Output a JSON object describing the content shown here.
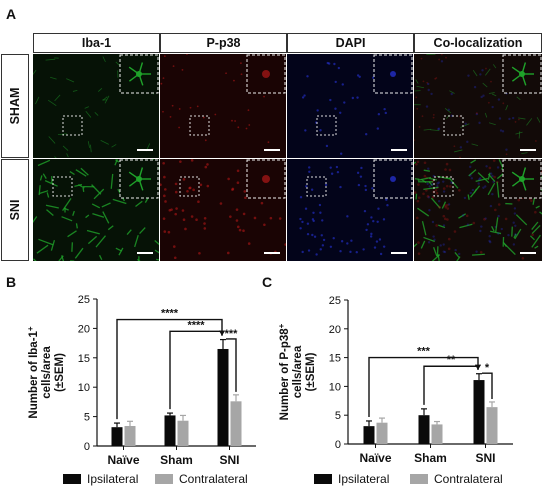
{
  "figure": {
    "panel_a_label": "A",
    "panel_b_label": "B",
    "panel_c_label": "C",
    "column_headers": [
      "Iba-1",
      "P-p38",
      "DAPI",
      "Co-localization"
    ],
    "row_headers": [
      "SHAM",
      "SNI"
    ],
    "colors": {
      "ipsilateral": "#0a0a0a",
      "contralateral": "#a6a6a6",
      "iba1": "#1fa22a",
      "pp38": "#b01818",
      "dapi": "#2430c8"
    }
  },
  "chart_data": [
    {
      "type": "bar",
      "panel": "B",
      "ylabel_lines": [
        "Number of Iba-1",
        "cells/area",
        "(±SEM)"
      ],
      "ylabel_sup": "+",
      "ylim": [
        0,
        25
      ],
      "yticks": [
        0,
        5,
        10,
        15,
        20,
        25
      ],
      "categories": [
        "Naïve",
        "Sham",
        "SNI"
      ],
      "series": [
        {
          "name": "Ipsilateral",
          "values": [
            3.2,
            5.2,
            16.5
          ],
          "errors": [
            0.7,
            0.4,
            1.6
          ]
        },
        {
          "name": "Contralateral",
          "values": [
            3.4,
            4.3,
            7.6
          ],
          "errors": [
            0.8,
            0.9,
            1.1
          ]
        }
      ],
      "significance": [
        {
          "label": "****",
          "from": "Naïve",
          "to": "SNI",
          "y": 21.5
        },
        {
          "label": "****",
          "from": "Sham",
          "to": "SNI",
          "y": 19.5
        },
        {
          "label": "***",
          "from": "SNI",
          "to": "SNI",
          "y": 18.2
        }
      ],
      "legend": [
        "Ipsilateral",
        "Contralateral"
      ],
      "legend_position": "bottom"
    },
    {
      "type": "bar",
      "panel": "C",
      "ylabel_lines": [
        "Number of P-p38",
        "cells/area",
        "(±SEM)"
      ],
      "ylabel_sup": "+",
      "ylim": [
        0,
        25
      ],
      "yticks": [
        0,
        5,
        10,
        15,
        20,
        25
      ],
      "categories": [
        "Naïve",
        "Sham",
        "SNI"
      ],
      "series": [
        {
          "name": "Ipsilateral",
          "values": [
            3.1,
            5.0,
            11.1
          ],
          "errors": [
            0.9,
            1.1,
            1.1
          ]
        },
        {
          "name": "Contralateral",
          "values": [
            3.7,
            3.4,
            6.4
          ],
          "errors": [
            0.8,
            0.5,
            0.9
          ]
        }
      ],
      "significance": [
        {
          "label": "***",
          "from": "Naïve",
          "to": "SNI",
          "y": 15.0
        },
        {
          "label": "**",
          "from": "Sham",
          "to": "SNI",
          "y": 13.5
        },
        {
          "label": "*",
          "from": "SNI",
          "to": "SNI",
          "y": 12.3
        }
      ],
      "legend": [
        "Ipsilateral",
        "Contralateral"
      ],
      "legend_position": "bottom"
    }
  ]
}
